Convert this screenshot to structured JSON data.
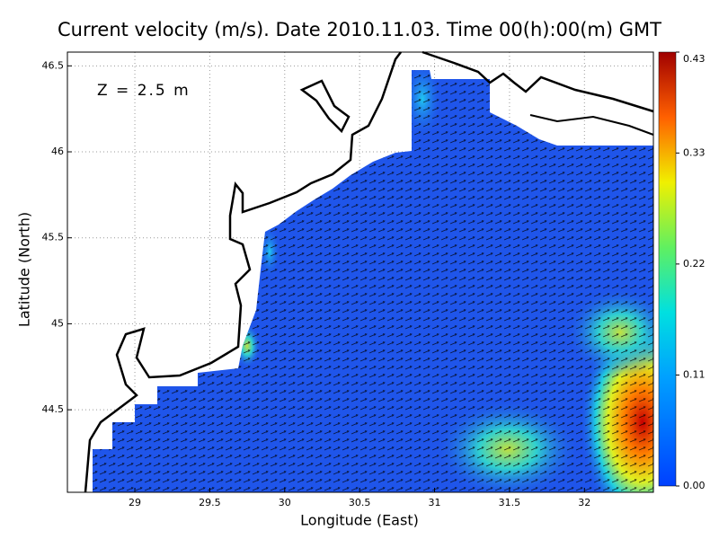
{
  "map": {
    "title": "Current velocity (m/s). Date 2010.11.03. Time 00(h):00(m) GMT",
    "annotation": "Z = 2.5 m",
    "x_label": "Longitude (East)",
    "y_label": "Latitude (North)",
    "xlim": [
      28.55,
      32.46
    ],
    "ylim": [
      44.02,
      46.58
    ],
    "xticks": [
      29,
      29.5,
      30,
      30.5,
      31,
      31.5,
      32
    ],
    "yticks": [
      44.5,
      45,
      45.5,
      46,
      46.5
    ],
    "grid": true,
    "colorbar": {
      "lim": [
        0,
        0.43
      ],
      "ticks": [
        {
          "value": 0,
          "label": "0.00"
        },
        0.11,
        0.22,
        0.33,
        0.43
      ]
    }
  }
}
